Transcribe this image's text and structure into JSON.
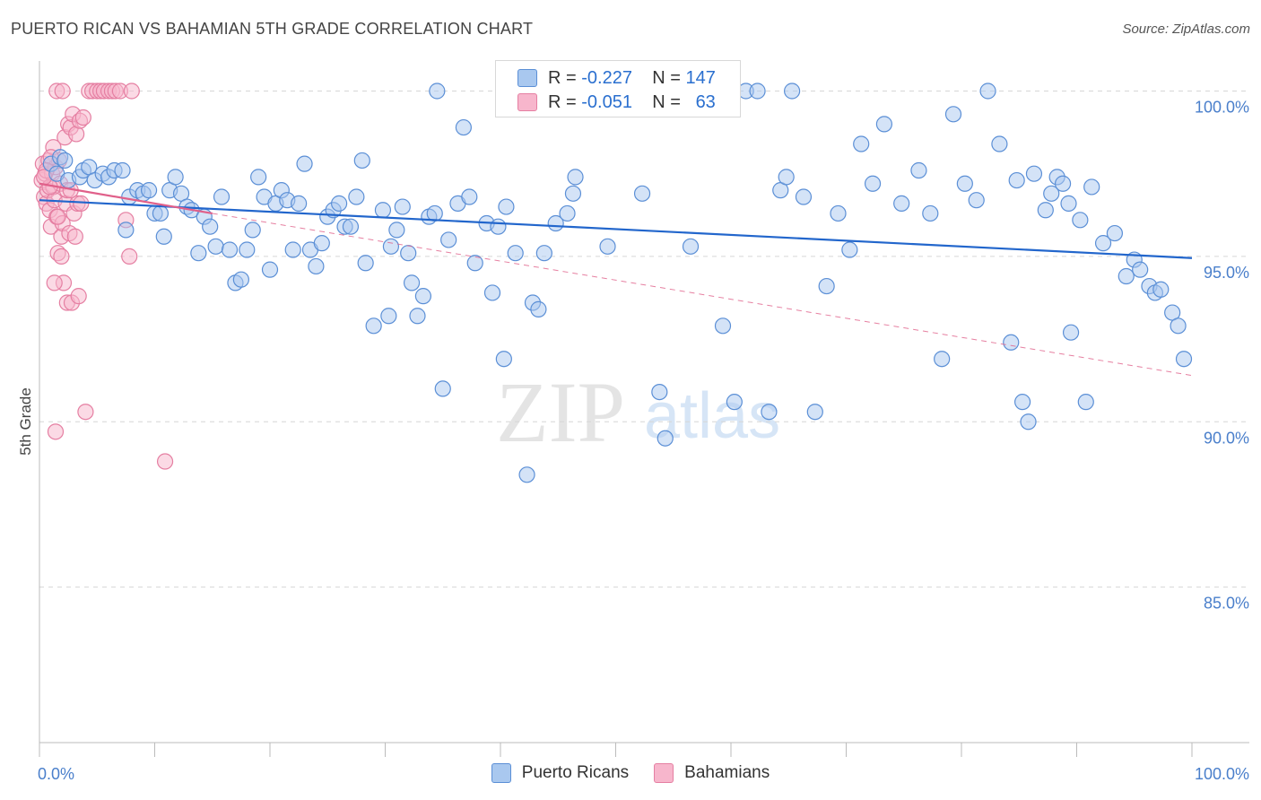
{
  "title": "PUERTO RICAN VS BAHAMIAN 5TH GRADE CORRELATION CHART",
  "source": "Source: ZipAtlas.com",
  "watermark": {
    "zip": "ZIP",
    "atlas": "atlas"
  },
  "legend": {
    "rows": [
      {
        "r_label": "R =",
        "r_value": "-0.227",
        "n_label": "N =",
        "n_value": "147"
      },
      {
        "r_label": "R =",
        "r_value": "-0.051",
        "n_label": "N =",
        "n_value": "63"
      }
    ]
  },
  "bottom_legend": [
    "Puerto Ricans",
    "Bahamians"
  ],
  "colors": {
    "blue_fill": "#a9c8ef",
    "blue_stroke": "#5b8fd6",
    "blue_line": "#2266cc",
    "pink_fill": "#f7b6cc",
    "pink_stroke": "#e57fa2",
    "pink_line": "#e0608a",
    "tick": "#4a7fcb",
    "grid": "#d6d6d6"
  },
  "chart_data": {
    "type": "scatter",
    "title": "PUERTO RICAN VS BAHAMIAN 5TH GRADE CORRELATION CHART",
    "xlabel": "",
    "ylabel": "5th Grade",
    "xlim": [
      0,
      100
    ],
    "ylim": [
      80.3,
      100.8
    ],
    "x_tick_labels": [
      "0.0%",
      "100.0%"
    ],
    "y_ticks": [
      100,
      95,
      90,
      85
    ],
    "y_tick_labels": [
      "100.0%",
      "95.0%",
      "90.0%",
      "85.0%"
    ],
    "grid": true,
    "legend_position": "top-center",
    "series": [
      {
        "name": "Puerto Ricans",
        "r": -0.227,
        "n": 147,
        "trend": {
          "x": [
            0,
            100
          ],
          "y": [
            96.7,
            94.95
          ],
          "style": "solid"
        },
        "points": [
          [
            1.0,
            97.8
          ],
          [
            1.5,
            97.5
          ],
          [
            1.8,
            98.0
          ],
          [
            2.2,
            97.9
          ],
          [
            2.5,
            97.3
          ],
          [
            3.5,
            97.4
          ],
          [
            3.8,
            97.6
          ],
          [
            4.3,
            97.7
          ],
          [
            4.8,
            97.3
          ],
          [
            5.5,
            97.5
          ],
          [
            6.0,
            97.4
          ],
          [
            6.5,
            97.6
          ],
          [
            7.2,
            97.6
          ],
          [
            7.5,
            95.8
          ],
          [
            7.8,
            96.8
          ],
          [
            8.5,
            97.0
          ],
          [
            9.0,
            96.9
          ],
          [
            9.5,
            97.0
          ],
          [
            10.0,
            96.3
          ],
          [
            10.5,
            96.3
          ],
          [
            10.8,
            95.6
          ],
          [
            11.3,
            97.0
          ],
          [
            11.8,
            97.4
          ],
          [
            12.3,
            96.9
          ],
          [
            12.8,
            96.5
          ],
          [
            13.2,
            96.4
          ],
          [
            13.8,
            95.1
          ],
          [
            14.3,
            96.2
          ],
          [
            14.8,
            95.9
          ],
          [
            15.3,
            95.3
          ],
          [
            15.8,
            96.8
          ],
          [
            16.5,
            95.2
          ],
          [
            17.0,
            94.2
          ],
          [
            17.5,
            94.3
          ],
          [
            18.0,
            95.2
          ],
          [
            18.5,
            95.8
          ],
          [
            19.0,
            97.4
          ],
          [
            19.5,
            96.8
          ],
          [
            20.0,
            94.6
          ],
          [
            20.5,
            96.6
          ],
          [
            21.0,
            97.0
          ],
          [
            21.5,
            96.7
          ],
          [
            22.0,
            95.2
          ],
          [
            22.5,
            96.6
          ],
          [
            23.0,
            97.8
          ],
          [
            23.5,
            95.2
          ],
          [
            24.0,
            94.7
          ],
          [
            24.5,
            95.4
          ],
          [
            25.0,
            96.2
          ],
          [
            25.5,
            96.4
          ],
          [
            26.0,
            96.6
          ],
          [
            26.5,
            95.9
          ],
          [
            27.0,
            95.9
          ],
          [
            27.5,
            96.8
          ],
          [
            28.0,
            97.9
          ],
          [
            28.3,
            94.8
          ],
          [
            29.0,
            92.9
          ],
          [
            29.8,
            96.4
          ],
          [
            30.3,
            93.2
          ],
          [
            30.5,
            95.3
          ],
          [
            31.0,
            95.8
          ],
          [
            31.5,
            96.5
          ],
          [
            32.0,
            95.1
          ],
          [
            32.3,
            94.2
          ],
          [
            32.8,
            93.2
          ],
          [
            33.3,
            93.8
          ],
          [
            33.8,
            96.2
          ],
          [
            34.3,
            96.3
          ],
          [
            34.5,
            100.0
          ],
          [
            35.0,
            91.0
          ],
          [
            35.5,
            95.5
          ],
          [
            36.3,
            96.6
          ],
          [
            36.8,
            98.9
          ],
          [
            37.3,
            96.8
          ],
          [
            37.8,
            94.8
          ],
          [
            38.8,
            96.0
          ],
          [
            39.3,
            93.9
          ],
          [
            39.8,
            95.9
          ],
          [
            40.3,
            91.9
          ],
          [
            40.5,
            96.5
          ],
          [
            41.3,
            95.1
          ],
          [
            42.3,
            88.4
          ],
          [
            42.8,
            93.6
          ],
          [
            43.3,
            93.4
          ],
          [
            43.8,
            95.1
          ],
          [
            44.8,
            96.0
          ],
          [
            45.8,
            96.3
          ],
          [
            46.3,
            96.9
          ],
          [
            46.5,
            97.4
          ],
          [
            47.8,
            100.0
          ],
          [
            49.3,
            95.3
          ],
          [
            50.5,
            99.9
          ],
          [
            51.5,
            99.9
          ],
          [
            52.3,
            96.9
          ],
          [
            53.3,
            100.0
          ],
          [
            53.8,
            90.9
          ],
          [
            54.3,
            89.5
          ],
          [
            55.3,
            100.0
          ],
          [
            56.3,
            100.0
          ],
          [
            56.5,
            95.3
          ],
          [
            57.3,
            100.0
          ],
          [
            58.3,
            100.0
          ],
          [
            59.3,
            92.9
          ],
          [
            60.3,
            90.6
          ],
          [
            61.3,
            100.0
          ],
          [
            62.3,
            100.0
          ],
          [
            63.3,
            90.3
          ],
          [
            64.3,
            97.0
          ],
          [
            64.8,
            97.4
          ],
          [
            65.3,
            100.0
          ],
          [
            66.3,
            96.8
          ],
          [
            67.3,
            90.3
          ],
          [
            68.3,
            94.1
          ],
          [
            69.3,
            96.3
          ],
          [
            70.3,
            95.2
          ],
          [
            71.3,
            98.4
          ],
          [
            72.3,
            97.2
          ],
          [
            73.3,
            99.0
          ],
          [
            74.8,
            96.6
          ],
          [
            76.3,
            97.6
          ],
          [
            77.3,
            96.3
          ],
          [
            78.3,
            91.9
          ],
          [
            79.3,
            99.3
          ],
          [
            80.3,
            97.2
          ],
          [
            81.3,
            96.7
          ],
          [
            82.3,
            100.0
          ],
          [
            83.3,
            98.4
          ],
          [
            84.3,
            92.4
          ],
          [
            84.8,
            97.3
          ],
          [
            85.3,
            90.6
          ],
          [
            85.8,
            90.0
          ],
          [
            86.3,
            97.5
          ],
          [
            87.3,
            96.4
          ],
          [
            87.8,
            96.9
          ],
          [
            88.3,
            97.4
          ],
          [
            88.8,
            97.2
          ],
          [
            89.3,
            96.6
          ],
          [
            89.5,
            92.7
          ],
          [
            90.3,
            96.1
          ],
          [
            90.8,
            90.6
          ],
          [
            91.3,
            97.1
          ],
          [
            92.3,
            95.4
          ],
          [
            93.3,
            95.7
          ],
          [
            94.3,
            94.4
          ],
          [
            95.0,
            94.9
          ],
          [
            95.5,
            94.6
          ],
          [
            96.3,
            94.1
          ],
          [
            96.8,
            93.9
          ],
          [
            97.3,
            94.0
          ],
          [
            98.3,
            93.3
          ],
          [
            98.8,
            92.9
          ],
          [
            99.3,
            91.9
          ]
        ]
      },
      {
        "name": "Bahamians",
        "r": -0.051,
        "n": 63,
        "trend": {
          "x": [
            0,
            15
          ],
          "y": [
            97.2,
            96.3
          ],
          "style": "solid",
          "extended": {
            "x": [
              15,
              100
            ],
            "y": [
              96.3,
              91.4
            ],
            "style": "dashed"
          }
        },
        "points": [
          [
            0.2,
            97.3
          ],
          [
            0.3,
            97.8
          ],
          [
            0.4,
            96.8
          ],
          [
            0.5,
            97.5
          ],
          [
            0.6,
            96.6
          ],
          [
            0.7,
            97.0
          ],
          [
            0.8,
            97.9
          ],
          [
            0.9,
            96.4
          ],
          [
            1.0,
            95.9
          ],
          [
            1.1,
            97.5
          ],
          [
            1.2,
            97.1
          ],
          [
            1.3,
            96.7
          ],
          [
            1.4,
            97.7
          ],
          [
            1.5,
            96.2
          ],
          [
            1.6,
            95.1
          ],
          [
            1.7,
            97.9
          ],
          [
            1.8,
            97.2
          ],
          [
            1.9,
            95.6
          ],
          [
            2.0,
            96.0
          ],
          [
            2.1,
            94.2
          ],
          [
            2.2,
            98.6
          ],
          [
            2.3,
            96.6
          ],
          [
            2.4,
            93.6
          ],
          [
            2.5,
            99.0
          ],
          [
            2.6,
            95.7
          ],
          [
            2.7,
            98.9
          ],
          [
            2.8,
            93.6
          ],
          [
            2.9,
            99.3
          ],
          [
            3.0,
            96.3
          ],
          [
            3.1,
            95.6
          ],
          [
            3.2,
            98.7
          ],
          [
            3.3,
            96.6
          ],
          [
            3.4,
            93.8
          ],
          [
            3.5,
            99.1
          ],
          [
            3.6,
            96.6
          ],
          [
            3.8,
            99.2
          ],
          [
            4.0,
            90.3
          ],
          [
            4.3,
            100.0
          ],
          [
            4.6,
            100.0
          ],
          [
            5.0,
            100.0
          ],
          [
            5.3,
            100.0
          ],
          [
            5.6,
            100.0
          ],
          [
            6.0,
            100.0
          ],
          [
            6.3,
            100.0
          ],
          [
            6.6,
            100.0
          ],
          [
            7.0,
            100.0
          ],
          [
            7.5,
            96.1
          ],
          [
            7.8,
            95.0
          ],
          [
            8.0,
            100.0
          ],
          [
            1.4,
            89.7
          ],
          [
            10.9,
            88.8
          ],
          [
            1.5,
            100.0
          ],
          [
            2.0,
            100.0
          ],
          [
            1.2,
            98.3
          ],
          [
            0.9,
            97.1
          ],
          [
            1.6,
            96.2
          ],
          [
            2.4,
            97.0
          ],
          [
            1.0,
            98.0
          ],
          [
            0.6,
            97.6
          ],
          [
            1.9,
            95.0
          ],
          [
            0.4,
            97.4
          ],
          [
            2.7,
            97.0
          ],
          [
            1.3,
            94.2
          ]
        ]
      }
    ]
  }
}
